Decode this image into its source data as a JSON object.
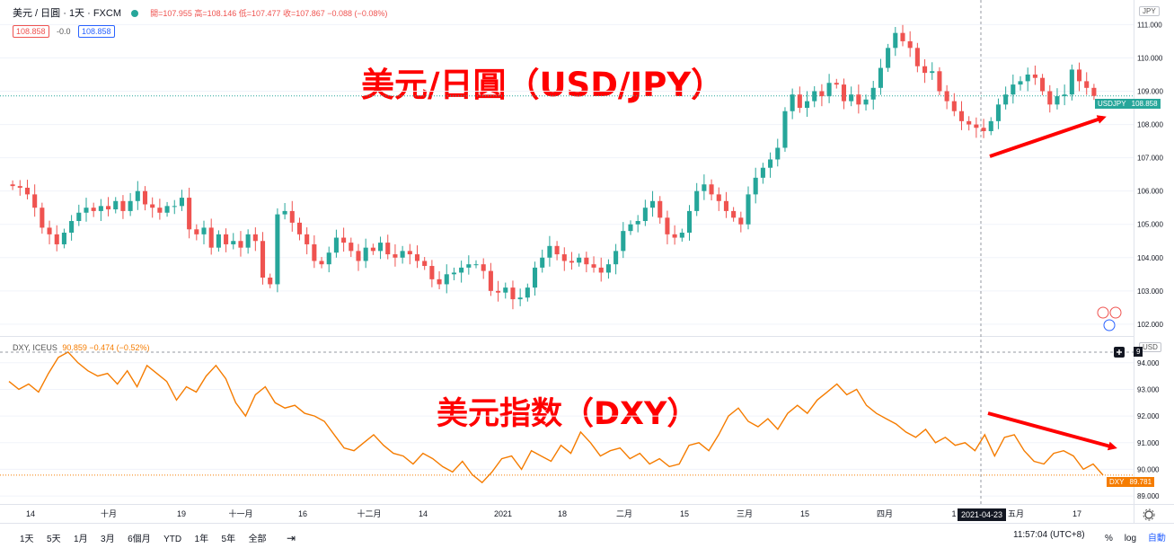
{
  "header": {
    "symbol": "美元 / 日圓 · 1天 · FXCM",
    "ohlc": "開=107.955 高=108.146 低=107.477 收=107.867 −0.088 (−0.08%)",
    "bid": "108.858",
    "spread": "-0.0",
    "ask": "108.858"
  },
  "currency_badge": "JPY",
  "annotations": {
    "usdjpy_title": "美元/日圓（USD/JPY）",
    "dxy_title": "美元指数（DXY）"
  },
  "dxy_header": {
    "label": "DXY, ICEUS",
    "values": "90.859 −0.474 (−0.52%)",
    "badge": "USD",
    "badge2": "9"
  },
  "price_tag": {
    "symbol": "USDJPY",
    "value": "108.858"
  },
  "dxy_tag": {
    "symbol": "DXY",
    "value": "89.781"
  },
  "crosshair_date": "2021-04-23",
  "time_labels": [
    "14",
    "十月",
    "19",
    "十一月",
    "16",
    "十二月",
    "14",
    "2021",
    "18",
    "二月",
    "15",
    "三月",
    "15",
    "四月",
    "1",
    "五月",
    "17"
  ],
  "bottom_bar": {
    "ranges": [
      "1天",
      "5天",
      "1月",
      "3月",
      "6個月",
      "YTD",
      "1年",
      "5年",
      "全部"
    ],
    "clock": "11:57:04 (UTC+8)",
    "percent": "%",
    "log": "log",
    "auto": "自動"
  },
  "colors": {
    "up": "#26a69a",
    "down": "#ef5350",
    "dxy_line": "#f57c00",
    "annotation": "#ff0000"
  },
  "chart_data": [
    {
      "type": "candlestick",
      "series_name": "USDJPY",
      "y_ticks": [
        102.0,
        103.0,
        104.0,
        105.0,
        106.0,
        107.0,
        108.0,
        109.0,
        110.0,
        111.0
      ],
      "ylim": [
        101.7,
        111.2
      ],
      "last_price": 108.858,
      "closes": [
        106.15,
        106.1,
        105.9,
        105.5,
        104.9,
        104.7,
        104.4,
        104.75,
        105.1,
        105.35,
        105.5,
        105.4,
        105.55,
        105.45,
        105.7,
        105.4,
        105.7,
        106.0,
        105.6,
        105.5,
        105.35,
        105.55,
        105.55,
        105.8,
        104.85,
        104.7,
        104.9,
        104.3,
        104.7,
        104.4,
        104.5,
        104.3,
        104.7,
        104.5,
        103.4,
        103.2,
        105.3,
        105.4,
        105.05,
        104.7,
        104.4,
        103.9,
        103.8,
        104.15,
        104.6,
        104.45,
        104.2,
        103.9,
        104.3,
        104.2,
        104.45,
        104.1,
        104.0,
        104.2,
        104.1,
        103.9,
        103.75,
        103.35,
        103.2,
        103.5,
        103.55,
        103.7,
        103.8,
        103.8,
        103.6,
        103.0,
        102.95,
        103.1,
        102.75,
        102.8,
        103.1,
        103.7,
        104.0,
        104.35,
        104.1,
        103.9,
        103.85,
        104.0,
        103.8,
        103.7,
        103.55,
        103.8,
        104.2,
        104.8,
        105.0,
        105.1,
        105.5,
        105.7,
        105.2,
        104.7,
        104.6,
        104.75,
        105.4,
        106.0,
        106.2,
        105.9,
        105.7,
        105.4,
        105.2,
        105.0,
        105.9,
        106.4,
        106.7,
        106.95,
        107.3,
        108.4,
        108.9,
        108.5,
        108.7,
        109.0,
        108.85,
        109.25,
        109.2,
        108.7,
        108.9,
        108.6,
        108.75,
        109.1,
        109.7,
        110.3,
        110.75,
        110.5,
        110.3,
        109.75,
        109.55,
        109.6,
        109.0,
        108.7,
        108.4,
        108.1,
        108.0,
        107.9,
        107.8,
        108.1,
        108.6,
        108.9,
        109.2,
        109.3,
        109.5,
        109.4,
        109.0,
        108.6,
        108.85,
        108.9,
        109.65,
        109.3,
        109.1,
        108.858
      ]
    },
    {
      "type": "line",
      "series_name": "DXY",
      "y_ticks": [
        89.0,
        90.0,
        91.0,
        92.0,
        93.0,
        94.0
      ],
      "ylim": [
        88.8,
        94.6
      ],
      "last_value": 89.781,
      "values": [
        93.3,
        93.0,
        93.2,
        92.9,
        93.6,
        94.2,
        94.4,
        94.0,
        93.7,
        93.5,
        93.6,
        93.2,
        93.7,
        93.1,
        93.9,
        93.6,
        93.3,
        92.6,
        93.1,
        92.9,
        93.5,
        93.9,
        93.4,
        92.5,
        92.0,
        92.8,
        93.1,
        92.5,
        92.3,
        92.4,
        92.1,
        92.0,
        91.8,
        91.3,
        90.8,
        90.7,
        91.0,
        91.3,
        90.9,
        90.6,
        90.5,
        90.2,
        90.6,
        90.4,
        90.1,
        89.9,
        90.3,
        89.8,
        89.5,
        89.9,
        90.4,
        90.5,
        90.0,
        90.7,
        90.5,
        90.3,
        90.9,
        90.6,
        91.4,
        91.0,
        90.5,
        90.7,
        90.8,
        90.4,
        90.6,
        90.2,
        90.4,
        90.1,
        90.2,
        90.9,
        91.0,
        90.7,
        91.3,
        92.0,
        92.3,
        91.8,
        91.6,
        91.9,
        91.5,
        92.1,
        92.4,
        92.1,
        92.6,
        92.9,
        93.2,
        92.8,
        93.0,
        92.4,
        92.1,
        91.9,
        91.7,
        91.4,
        91.2,
        91.5,
        91.0,
        91.2,
        90.9,
        91.0,
        90.7,
        91.3,
        90.5,
        91.2,
        91.3,
        90.7,
        90.3,
        90.2,
        90.6,
        90.7,
        90.5,
        90.0,
        90.2,
        89.781
      ]
    }
  ]
}
